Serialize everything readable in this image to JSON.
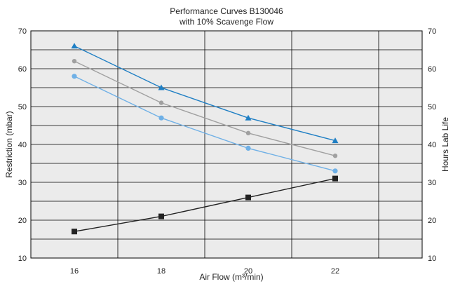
{
  "chart_data": {
    "type": "line",
    "title": "Performance Curves B130046",
    "subtitle": "with 10% Scavenge Flow",
    "xlabel": "Air Flow (m³/min)",
    "ylabel": "Restriction (mbar)",
    "y2label": "Hours Lab Life",
    "xlim": [
      15,
      24
    ],
    "ylim": [
      10,
      70
    ],
    "y2lim": [
      10,
      70
    ],
    "x_ticks": [
      16,
      18,
      20,
      22
    ],
    "y_ticks": [
      10,
      20,
      30,
      40,
      50,
      60,
      70
    ],
    "y2_ticks": [
      10,
      20,
      30,
      40,
      50,
      60,
      70
    ],
    "grid": true,
    "x": [
      16,
      18,
      20,
      22
    ],
    "series": [
      {
        "values": [
          66,
          55,
          47,
          41
        ],
        "color": "#1f7fc4",
        "marker": "triangle"
      },
      {
        "values": [
          62,
          51,
          43,
          37
        ],
        "color": "#a0a0a0",
        "marker": "diamond"
      },
      {
        "values": [
          58,
          47,
          39,
          33
        ],
        "color": "#6fb0e6",
        "marker": "circle"
      },
      {
        "values": [
          17,
          21,
          26,
          31
        ],
        "color": "#222222",
        "marker": "square"
      }
    ]
  }
}
